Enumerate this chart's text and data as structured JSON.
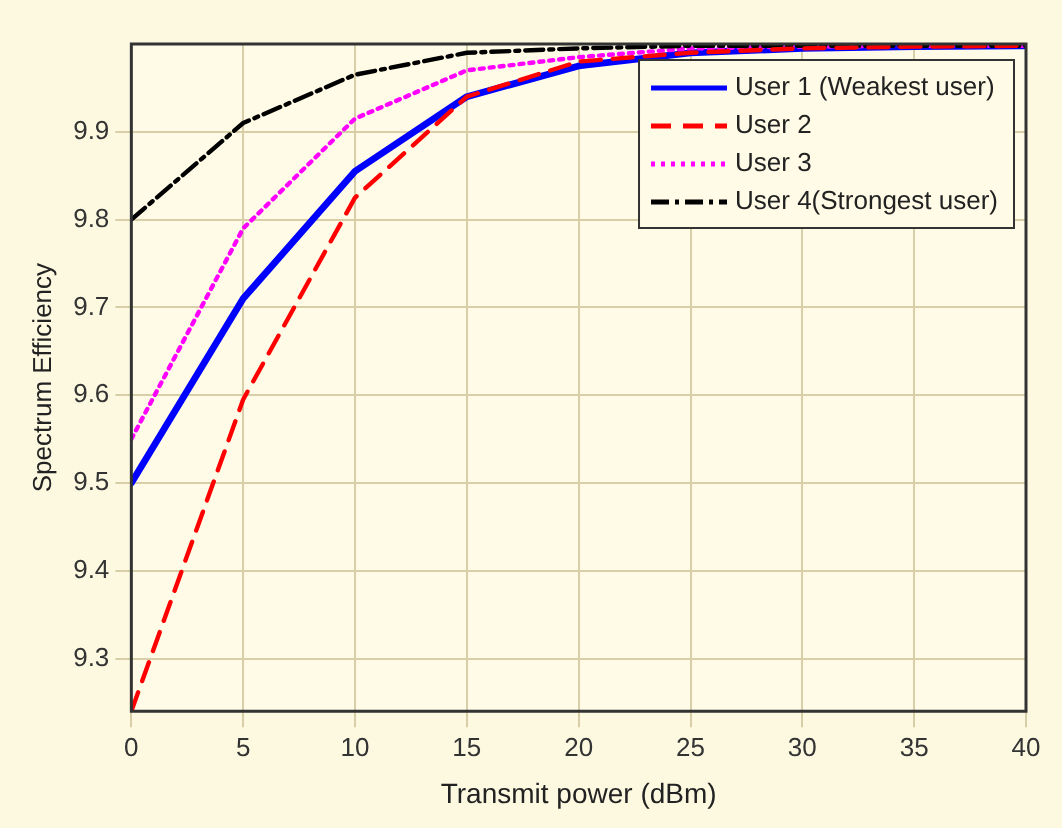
{
  "chart_data": {
    "type": "line",
    "xlabel": "Transmit power (dBm)",
    "ylabel": "Spectrum Efficiency",
    "x": [
      0,
      5,
      10,
      15,
      20,
      25,
      30,
      35,
      40
    ],
    "series": [
      {
        "name": "User 1 (Weakest user)",
        "color": "#0000ff",
        "line_style": "solid",
        "values": [
          9.5,
          9.71,
          9.855,
          9.94,
          9.975,
          9.99,
          9.995,
          9.997,
          9.998
        ]
      },
      {
        "name": "User 2",
        "color": "#ff0000",
        "line_style": "dashed",
        "values": [
          9.24,
          9.595,
          9.825,
          9.94,
          9.98,
          9.99,
          9.995,
          9.997,
          9.998
        ]
      },
      {
        "name": "User 3",
        "color": "#ff00ff",
        "line_style": "dotted",
        "values": [
          9.55,
          9.79,
          9.915,
          9.97,
          9.985,
          9.995,
          9.997,
          9.998,
          9.998
        ]
      },
      {
        "name": "User 4(Strongest user)",
        "color": "#000000",
        "line_style": "dashdot",
        "values": [
          9.8,
          9.91,
          9.965,
          9.99,
          9.995,
          9.998,
          9.998,
          9.998,
          9.998
        ]
      }
    ],
    "xlim": [
      0,
      40
    ],
    "xticks": [
      0,
      5,
      10,
      15,
      20,
      25,
      30,
      35,
      40
    ],
    "ylim": [
      9.24,
      10
    ],
    "yticks": [
      9.3,
      9.4,
      9.5,
      9.6,
      9.7,
      9.8,
      9.9
    ],
    "grid": true,
    "legend": "top right",
    "marker": "none"
  }
}
